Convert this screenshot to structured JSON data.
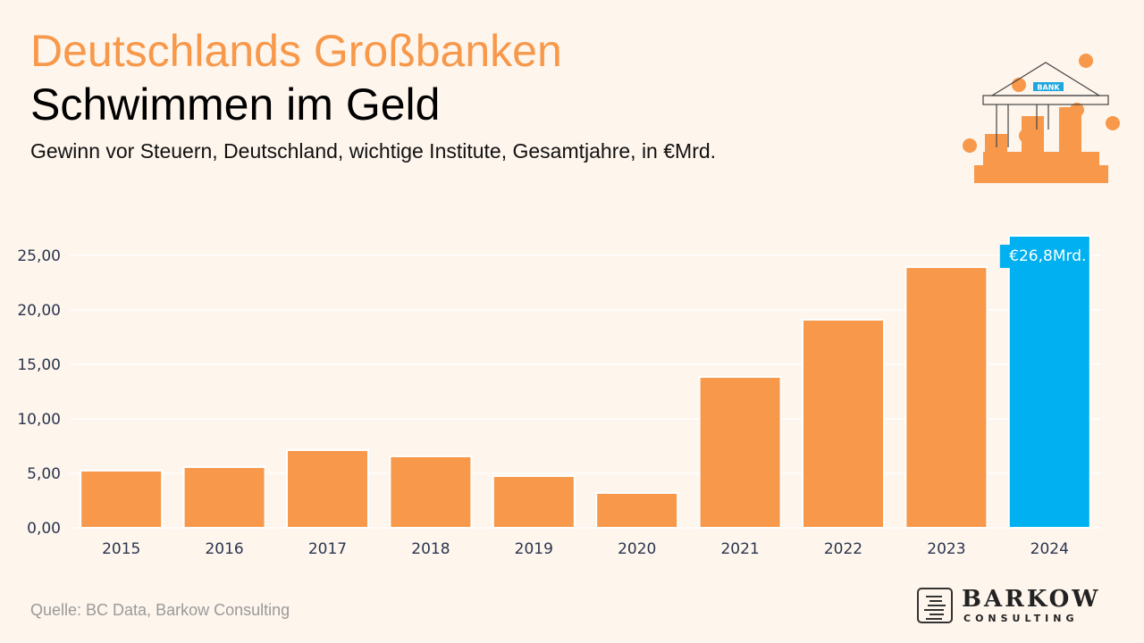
{
  "header": {
    "title": "Deutschlands Großbanken",
    "subtitle": "Schwimmen im Geld",
    "description": "Gewinn vor Steuern, Deutschland, wichtige Institute, Gesamtjahre, in €Mrd."
  },
  "footer": {
    "source": "Quelle: BC Data, Barkow Consulting"
  },
  "logo": {
    "name": "BARKOW",
    "sub": "CONSULTING"
  },
  "illustration": {
    "icon": "bank-with-coins-icon",
    "sign": "BANK"
  },
  "colors": {
    "bar": "#f7984a",
    "highlight": "#00b0f0"
  },
  "chart_data": {
    "type": "bar",
    "categories": [
      "2015",
      "2016",
      "2017",
      "2018",
      "2019",
      "2020",
      "2021",
      "2022",
      "2023",
      "2024"
    ],
    "values": [
      5.25,
      5.57,
      7.13,
      6.56,
      4.75,
      3.2,
      13.85,
      19.1,
      23.93,
      26.8
    ],
    "highlight_index": 9,
    "data_label": "€26,8Mrd.",
    "ylim": [
      0,
      25
    ],
    "yticks": [
      "0,00",
      "5,00",
      "10,00",
      "15,00",
      "20,00",
      "25,00"
    ],
    "grid": true,
    "xlabel": "",
    "ylabel": ""
  }
}
